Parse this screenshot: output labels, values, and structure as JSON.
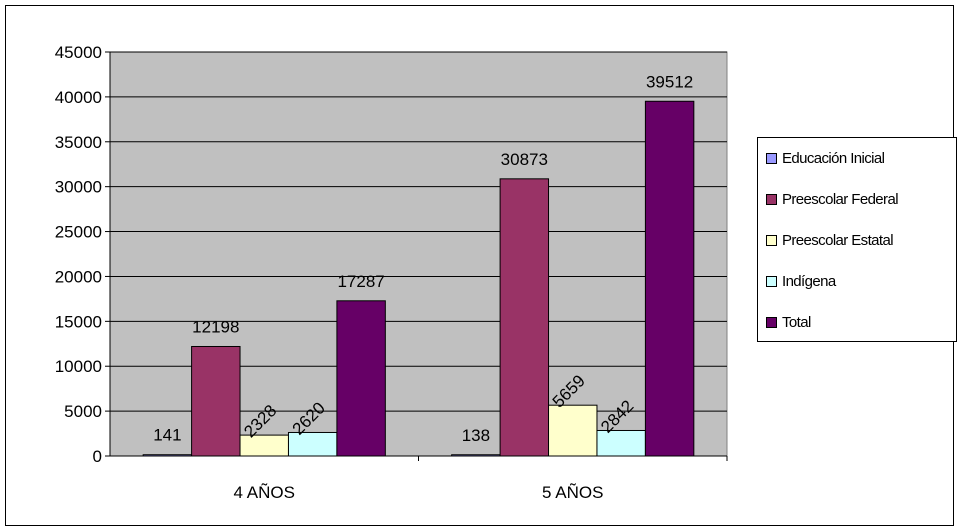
{
  "chart_data": {
    "type": "bar",
    "categories": [
      "4 AÑOS",
      "5 AÑOS"
    ],
    "series": [
      {
        "name": "Educación Inicial",
        "values": [
          141,
          138
        ],
        "color": "#9999FF"
      },
      {
        "name": "Preescolar Federal",
        "values": [
          12198,
          30873
        ],
        "color": "#993366"
      },
      {
        "name": "Preescolar Estatal",
        "values": [
          2328,
          5659
        ],
        "color": "#FFFFCC"
      },
      {
        "name": "Indígena",
        "values": [
          2620,
          2842
        ],
        "color": "#CCFFFF"
      },
      {
        "name": "Total",
        "values": [
          17287,
          39512
        ],
        "color": "#660066"
      }
    ],
    "ylim": [
      0,
      45000
    ],
    "yticks": [
      0,
      5000,
      10000,
      15000,
      20000,
      25000,
      30000,
      35000,
      40000,
      45000
    ],
    "grid": true,
    "legend_position": "right",
    "plot_background": "#C0C0C0"
  }
}
